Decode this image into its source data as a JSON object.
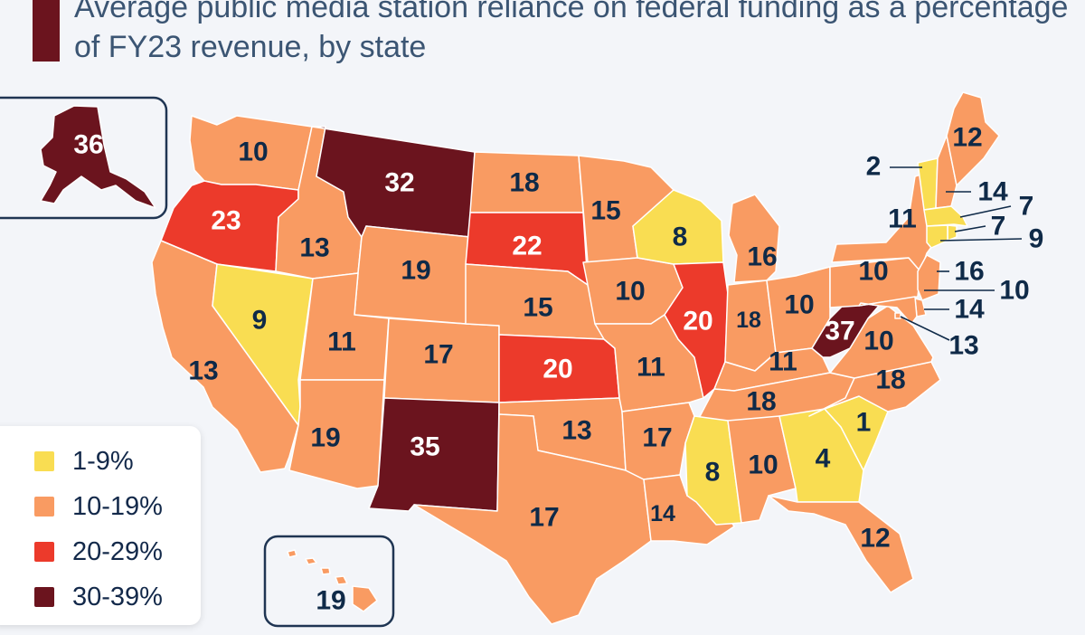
{
  "title": "Average public media station reliance on federal funding as a percentage of FY23 revenue, by state",
  "colors": {
    "b1": "#f9dd52",
    "b2": "#f99b62",
    "b3": "#ec3a2b",
    "b4": "#6b141e",
    "border": "#ffffff",
    "label_dark": "#0f2a48",
    "label_light": "#ffffff"
  },
  "legend": [
    {
      "label": "1-9%",
      "bucket": "b1"
    },
    {
      "label": "10-19%",
      "bucket": "b2"
    },
    {
      "label": "20-29%",
      "bucket": "b3"
    },
    {
      "label": "30-39%",
      "bucket": "b4"
    }
  ],
  "states": [
    {
      "name": "Alaska",
      "value": "36",
      "bucket": "b4"
    },
    {
      "name": "Hawaii",
      "value": "19",
      "bucket": "b2"
    },
    {
      "name": "Washington",
      "value": "10",
      "bucket": "b2"
    },
    {
      "name": "Oregon",
      "value": "23",
      "bucket": "b3"
    },
    {
      "name": "California",
      "value": "13",
      "bucket": "b2"
    },
    {
      "name": "Nevada",
      "value": "9",
      "bucket": "b1"
    },
    {
      "name": "Idaho",
      "value": "13",
      "bucket": "b2"
    },
    {
      "name": "Montana",
      "value": "32",
      "bucket": "b4"
    },
    {
      "name": "Wyoming",
      "value": "19",
      "bucket": "b2"
    },
    {
      "name": "Utah",
      "value": "11",
      "bucket": "b2"
    },
    {
      "name": "Arizona",
      "value": "19",
      "bucket": "b2"
    },
    {
      "name": "Colorado",
      "value": "17",
      "bucket": "b2"
    },
    {
      "name": "New Mexico",
      "value": "35",
      "bucket": "b4"
    },
    {
      "name": "North Dakota",
      "value": "18",
      "bucket": "b2"
    },
    {
      "name": "South Dakota",
      "value": "22",
      "bucket": "b3"
    },
    {
      "name": "Nebraska",
      "value": "15",
      "bucket": "b2"
    },
    {
      "name": "Kansas",
      "value": "20",
      "bucket": "b3"
    },
    {
      "name": "Oklahoma",
      "value": "13",
      "bucket": "b2"
    },
    {
      "name": "Texas",
      "value": "17",
      "bucket": "b2"
    },
    {
      "name": "Minnesota",
      "value": "15",
      "bucket": "b2"
    },
    {
      "name": "Iowa",
      "value": "10",
      "bucket": "b2"
    },
    {
      "name": "Missouri",
      "value": "11",
      "bucket": "b2"
    },
    {
      "name": "Arkansas",
      "value": "17",
      "bucket": "b2"
    },
    {
      "name": "Louisiana",
      "value": "14",
      "bucket": "b2"
    },
    {
      "name": "Wisconsin",
      "value": "8",
      "bucket": "b1"
    },
    {
      "name": "Illinois",
      "value": "20",
      "bucket": "b3"
    },
    {
      "name": "Michigan",
      "value": "16",
      "bucket": "b2"
    },
    {
      "name": "Indiana",
      "value": "18",
      "bucket": "b2"
    },
    {
      "name": "Ohio",
      "value": "10",
      "bucket": "b2"
    },
    {
      "name": "Kentucky",
      "value": "11",
      "bucket": "b2"
    },
    {
      "name": "Tennessee",
      "value": "18",
      "bucket": "b2"
    },
    {
      "name": "Mississippi",
      "value": "8",
      "bucket": "b1"
    },
    {
      "name": "Alabama",
      "value": "10",
      "bucket": "b2"
    },
    {
      "name": "Georgia",
      "value": "4",
      "bucket": "b1"
    },
    {
      "name": "Florida",
      "value": "12",
      "bucket": "b2"
    },
    {
      "name": "South Carolina",
      "value": "1",
      "bucket": "b1"
    },
    {
      "name": "North Carolina",
      "value": "18",
      "bucket": "b2"
    },
    {
      "name": "Virginia",
      "value": "10",
      "bucket": "b2"
    },
    {
      "name": "West Virginia",
      "value": "37",
      "bucket": "b4"
    },
    {
      "name": "Pennsylvania",
      "value": "10",
      "bucket": "b2"
    },
    {
      "name": "New York",
      "value": "11",
      "bucket": "b2"
    },
    {
      "name": "Vermont",
      "value": "2",
      "bucket": "b1"
    },
    {
      "name": "New Hampshire",
      "value": "14",
      "bucket": "b2"
    },
    {
      "name": "Maine",
      "value": "12",
      "bucket": "b2"
    },
    {
      "name": "Massachusetts",
      "value": "7",
      "bucket": "b1"
    },
    {
      "name": "Rhode Island",
      "value": "7",
      "bucket": "b1"
    },
    {
      "name": "Connecticut",
      "value": "9",
      "bucket": "b1"
    },
    {
      "name": "New Jersey",
      "value": "16",
      "bucket": "b2"
    },
    {
      "name": "Delaware",
      "value": "10",
      "bucket": "b2"
    },
    {
      "name": "Maryland",
      "value": "14",
      "bucket": "b2"
    },
    {
      "name": "District of Columbia",
      "value": "13",
      "bucket": "b2"
    }
  ]
}
